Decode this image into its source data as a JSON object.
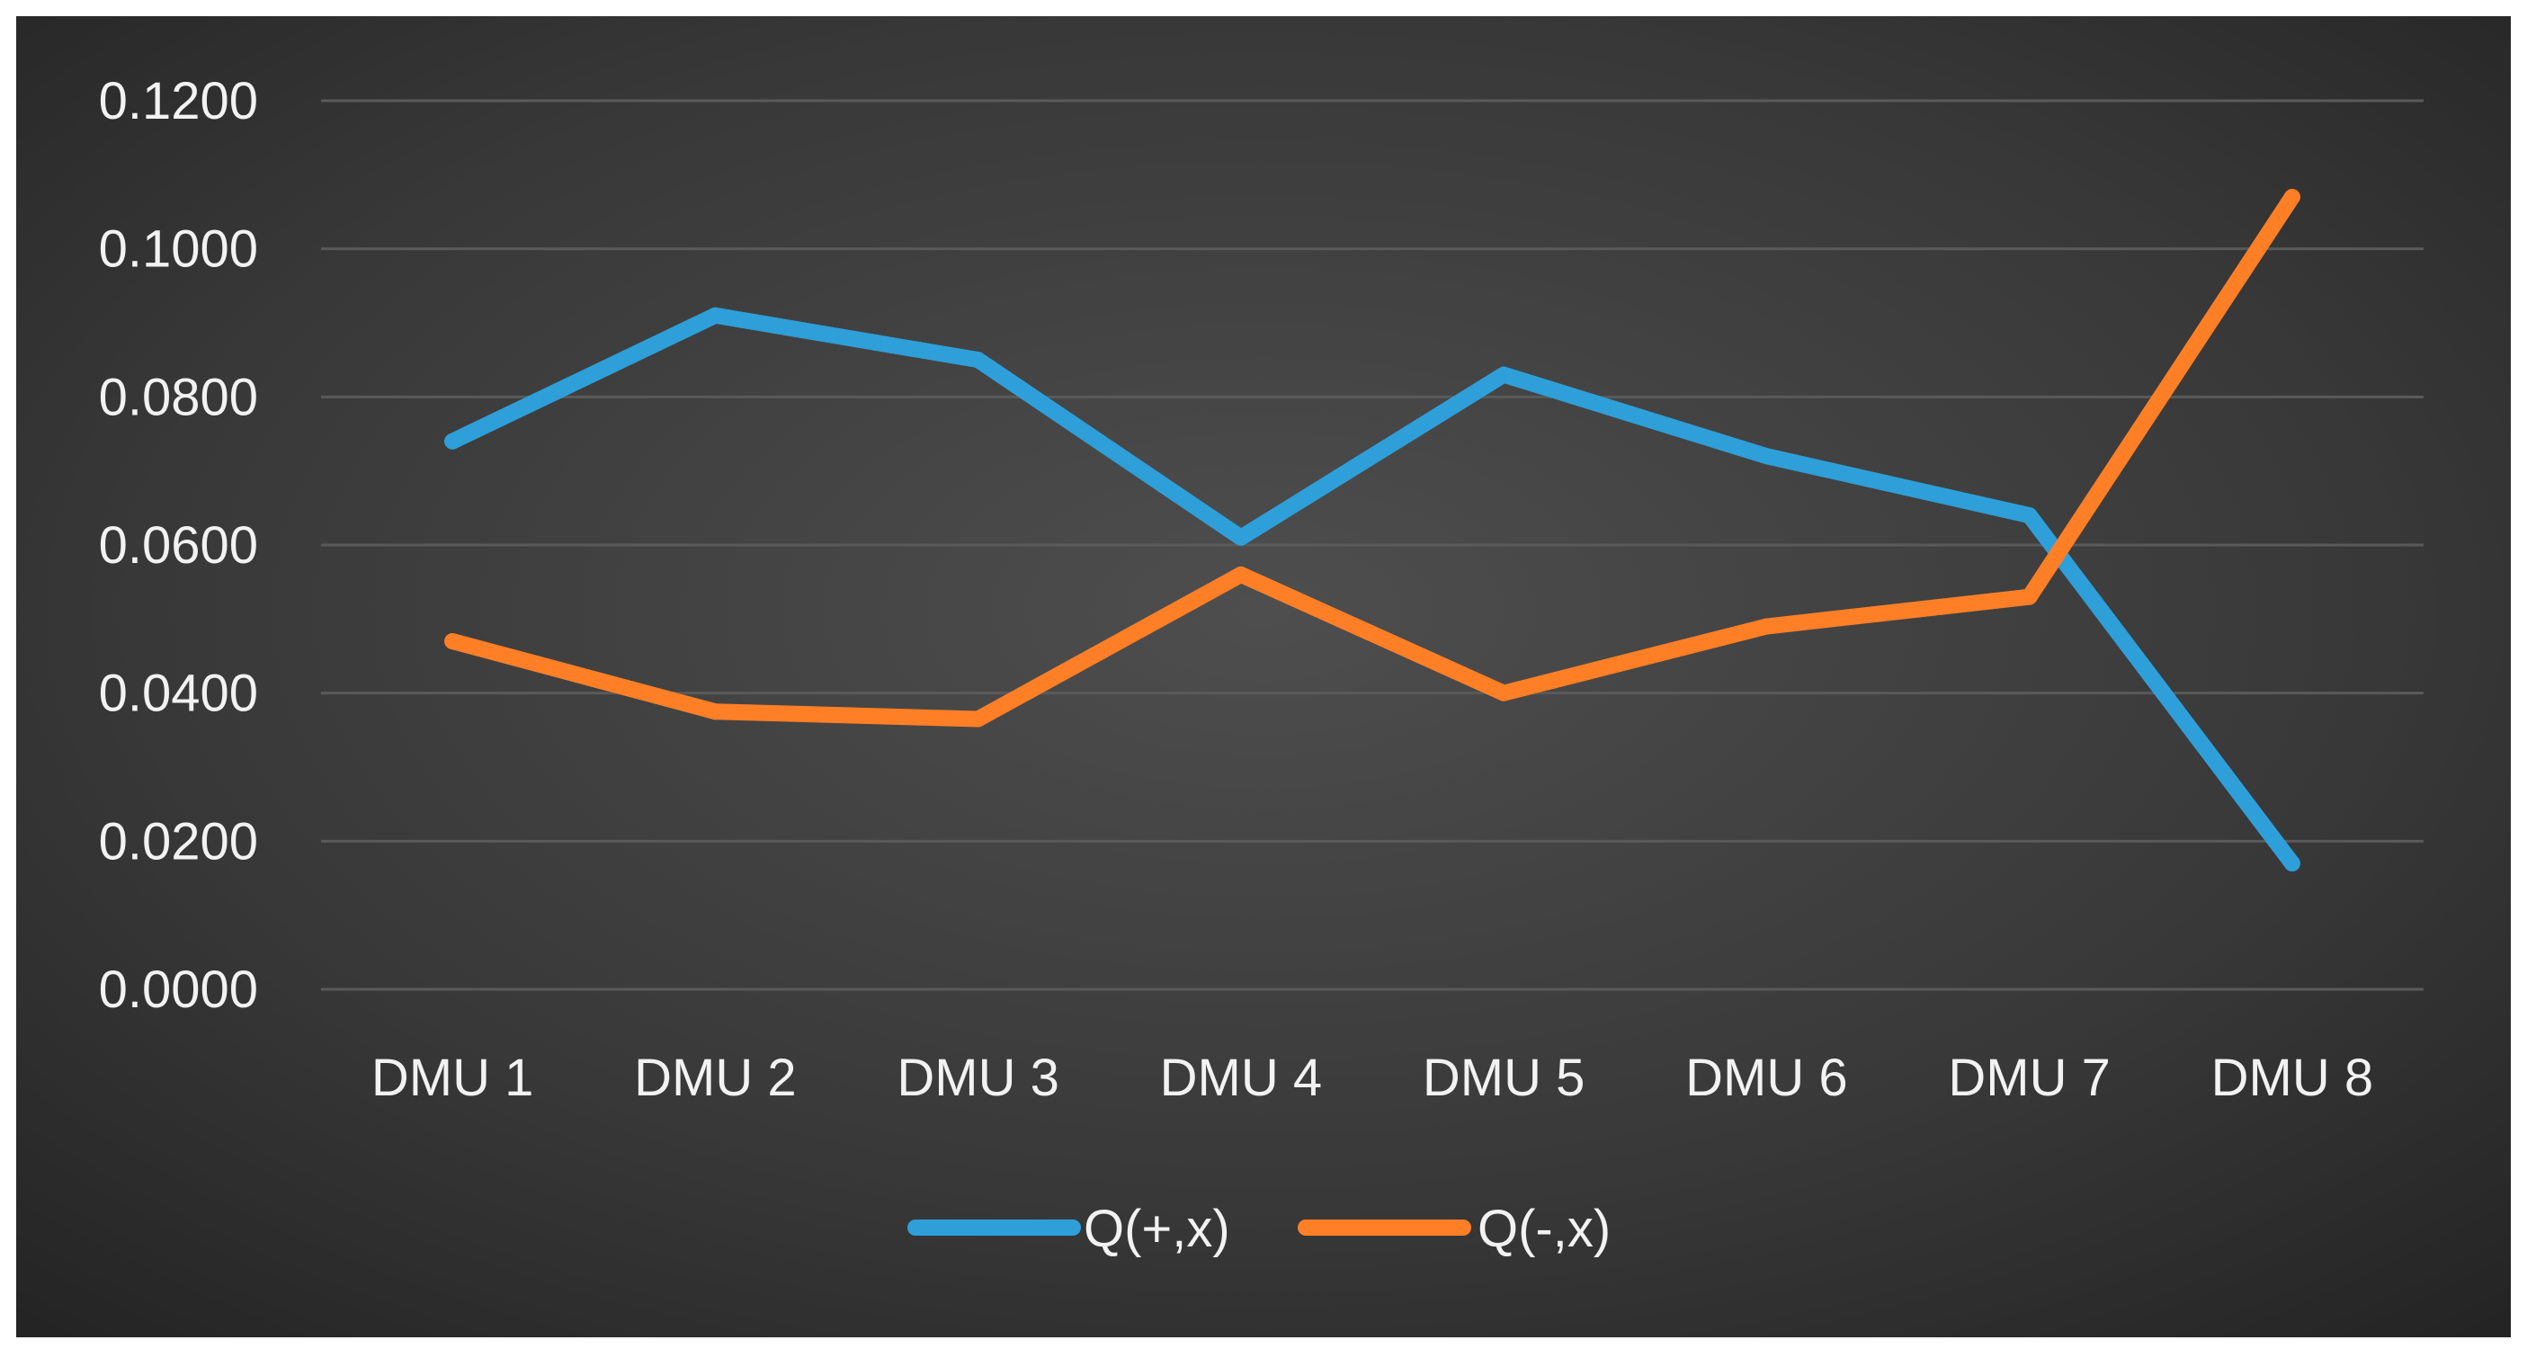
{
  "chart_data": {
    "type": "line",
    "title": "",
    "xlabel": "",
    "ylabel": "",
    "categories": [
      "DMU 1",
      "DMU 2",
      "DMU 3",
      "DMU 4",
      "DMU 5",
      "DMU 6",
      "DMU 7",
      "DMU 8"
    ],
    "ylim": [
      0,
      0.12
    ],
    "yticks": [
      "0.0000",
      "0.0200",
      "0.0400",
      "0.0600",
      "0.0800",
      "0.1000",
      "0.1200"
    ],
    "grid": true,
    "legend_position": "bottom",
    "background_color": "#3a3a3a",
    "gridline_color": "#5a5a5a",
    "text_color": "#f2f2f2",
    "series": [
      {
        "name": "Q(+,x)",
        "color": "#2e9fd9",
        "values": [
          0.074,
          0.091,
          0.085,
          0.061,
          0.083,
          0.072,
          0.064,
          0.017
        ]
      },
      {
        "name": "Q(-,x)",
        "color": "#ff7f27",
        "values": [
          0.047,
          0.0375,
          0.0365,
          0.056,
          0.04,
          0.049,
          0.053,
          0.107
        ]
      }
    ]
  }
}
